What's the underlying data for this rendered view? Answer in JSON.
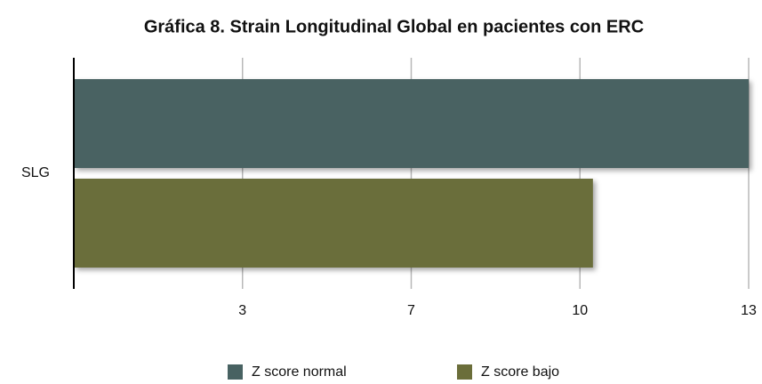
{
  "chart_data": {
    "type": "bar",
    "orientation": "horizontal",
    "title": "Gráfica 8. Strain Longitudinal Global en pacientes con ERC",
    "categories": [
      "SLG"
    ],
    "series": [
      {
        "name": "Z score normal",
        "color": "#486262",
        "values": [
          13
        ]
      },
      {
        "name": "Z score bajo",
        "color": "#6b6e3a",
        "values": [
          10
        ]
      }
    ],
    "xlim": [
      0,
      13
    ],
    "xticks": [
      {
        "value": 3.25,
        "label": "3"
      },
      {
        "value": 6.5,
        "label": "7"
      },
      {
        "value": 9.75,
        "label": "10"
      },
      13
    ],
    "grid": true,
    "legend": "bottom"
  }
}
